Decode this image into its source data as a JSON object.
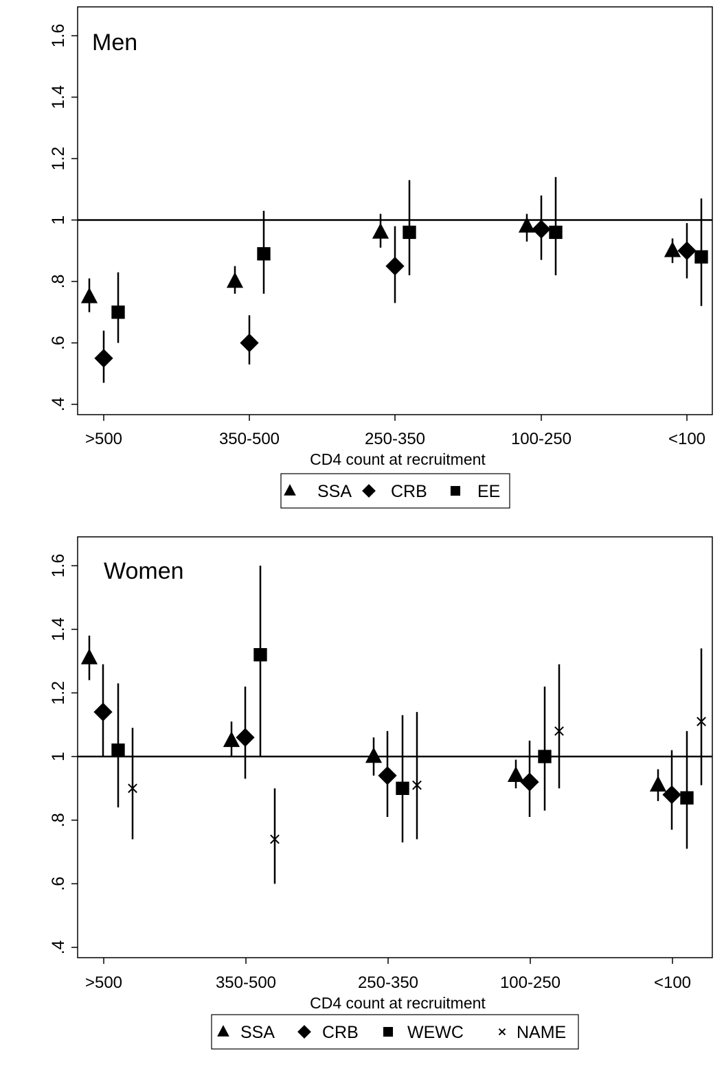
{
  "chart_data": [
    {
      "type": "scatter",
      "title": "Men",
      "xlabel": "CD4 count at recruitment",
      "ylabel": "",
      "categories": [
        ">500",
        "350-500",
        "250-350",
        "100-250",
        "<100"
      ],
      "ylim": [
        0.4,
        1.6
      ],
      "yticks": [
        0.4,
        0.6,
        0.8,
        1,
        1.2,
        1.4,
        1.6
      ],
      "ytick_labels": [
        ".4",
        ".6",
        ".8",
        "1",
        "1.2",
        "1.4",
        "1.6"
      ],
      "reference_line": 1,
      "legend_position": "bottom",
      "series": [
        {
          "name": "SSA",
          "marker": "triangle",
          "estimate": [
            0.75,
            0.8,
            0.96,
            0.98,
            0.9
          ],
          "lower": [
            0.7,
            0.76,
            0.91,
            0.93,
            0.86
          ],
          "upper": [
            0.81,
            0.85,
            1.02,
            1.02,
            0.94
          ]
        },
        {
          "name": "CRB",
          "marker": "diamond",
          "estimate": [
            0.55,
            0.6,
            0.85,
            0.97,
            0.9
          ],
          "lower": [
            0.47,
            0.53,
            0.73,
            0.87,
            0.81
          ],
          "upper": [
            0.64,
            0.69,
            0.98,
            1.08,
            0.99
          ]
        },
        {
          "name": "EE",
          "marker": "square",
          "estimate": [
            0.7,
            0.89,
            0.96,
            0.96,
            0.88
          ],
          "lower": [
            0.6,
            0.76,
            0.82,
            0.82,
            0.72
          ],
          "upper": [
            0.83,
            1.03,
            1.13,
            1.14,
            1.07
          ]
        }
      ]
    },
    {
      "type": "scatter",
      "title": "Women",
      "xlabel": "CD4 count at recruitment",
      "ylabel": "",
      "categories": [
        ">500",
        "350-500",
        "250-350",
        "100-250",
        "<100"
      ],
      "ylim": [
        0.4,
        1.6
      ],
      "yticks": [
        0.4,
        0.6,
        0.8,
        1,
        1.2,
        1.4,
        1.6
      ],
      "ytick_labels": [
        ".4",
        ".6",
        ".8",
        "1",
        "1.2",
        "1.4",
        "1.6"
      ],
      "reference_line": 1,
      "legend_position": "bottom",
      "series": [
        {
          "name": "SSA",
          "marker": "triangle",
          "estimate": [
            1.31,
            1.05,
            1.0,
            0.94,
            0.91
          ],
          "lower": [
            1.24,
            1.0,
            0.94,
            0.9,
            0.86
          ],
          "upper": [
            1.38,
            1.11,
            1.06,
            0.99,
            0.96
          ]
        },
        {
          "name": "CRB",
          "marker": "diamond",
          "estimate": [
            1.14,
            1.06,
            0.94,
            0.92,
            0.88
          ],
          "lower": [
            1.0,
            0.93,
            0.81,
            0.81,
            0.77
          ],
          "upper": [
            1.29,
            1.22,
            1.08,
            1.05,
            1.02
          ]
        },
        {
          "name": "WEWC",
          "marker": "square",
          "estimate": [
            1.02,
            1.32,
            0.9,
            1.0,
            0.87
          ],
          "lower": [
            0.84,
            1.0,
            0.73,
            0.83,
            0.71
          ],
          "upper": [
            1.23,
            1.6,
            1.13,
            1.22,
            1.08
          ]
        },
        {
          "name": "NAME",
          "marker": "x",
          "estimate": [
            0.9,
            0.74,
            0.91,
            1.08,
            1.11
          ],
          "lower": [
            0.74,
            0.6,
            0.74,
            0.9,
            0.91
          ],
          "upper": [
            1.09,
            0.9,
            1.14,
            1.29,
            1.34
          ]
        }
      ]
    }
  ]
}
